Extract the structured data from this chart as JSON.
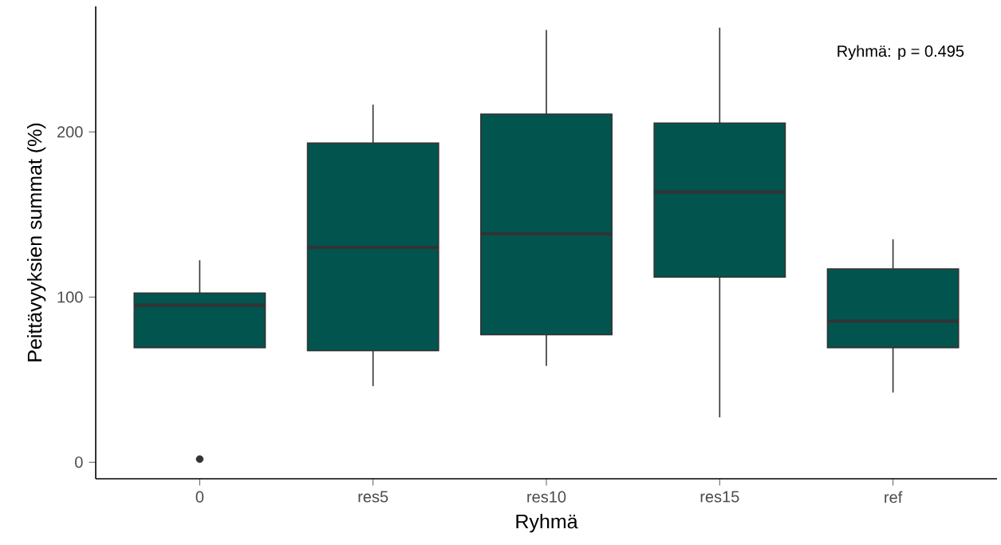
{
  "chart_data": {
    "type": "box",
    "xlabel": "Ryhmä",
    "ylabel": "Peittävyyksien summat (%)",
    "categories": [
      "0",
      "res5",
      "res10",
      "res15",
      "ref"
    ],
    "color": "#02554f",
    "boxes": [
      {
        "low": 69.4,
        "q1": 69.4,
        "median": 95.1,
        "q3": 102.4,
        "high": 122.3,
        "outliers": [
          1.9
        ]
      },
      {
        "low": 46.1,
        "q1": 67.5,
        "median": 130.1,
        "q3": 193.2,
        "high": 216.5
      },
      {
        "low": 58.3,
        "q1": 77.2,
        "median": 138.3,
        "q3": 210.7,
        "high": 261.7
      },
      {
        "low": 27.2,
        "q1": 112.1,
        "median": 163.6,
        "q3": 205.3,
        "high": 263.1
      },
      {
        "low": 42.2,
        "q1": 69.4,
        "median": 85.4,
        "q3": 117.0,
        "high": 135.0
      }
    ],
    "ylim": [
      -10,
      276
    ],
    "yticks": [
      0,
      100,
      200
    ],
    "annotations": [
      "Ryhmä: p = 0.495"
    ]
  }
}
